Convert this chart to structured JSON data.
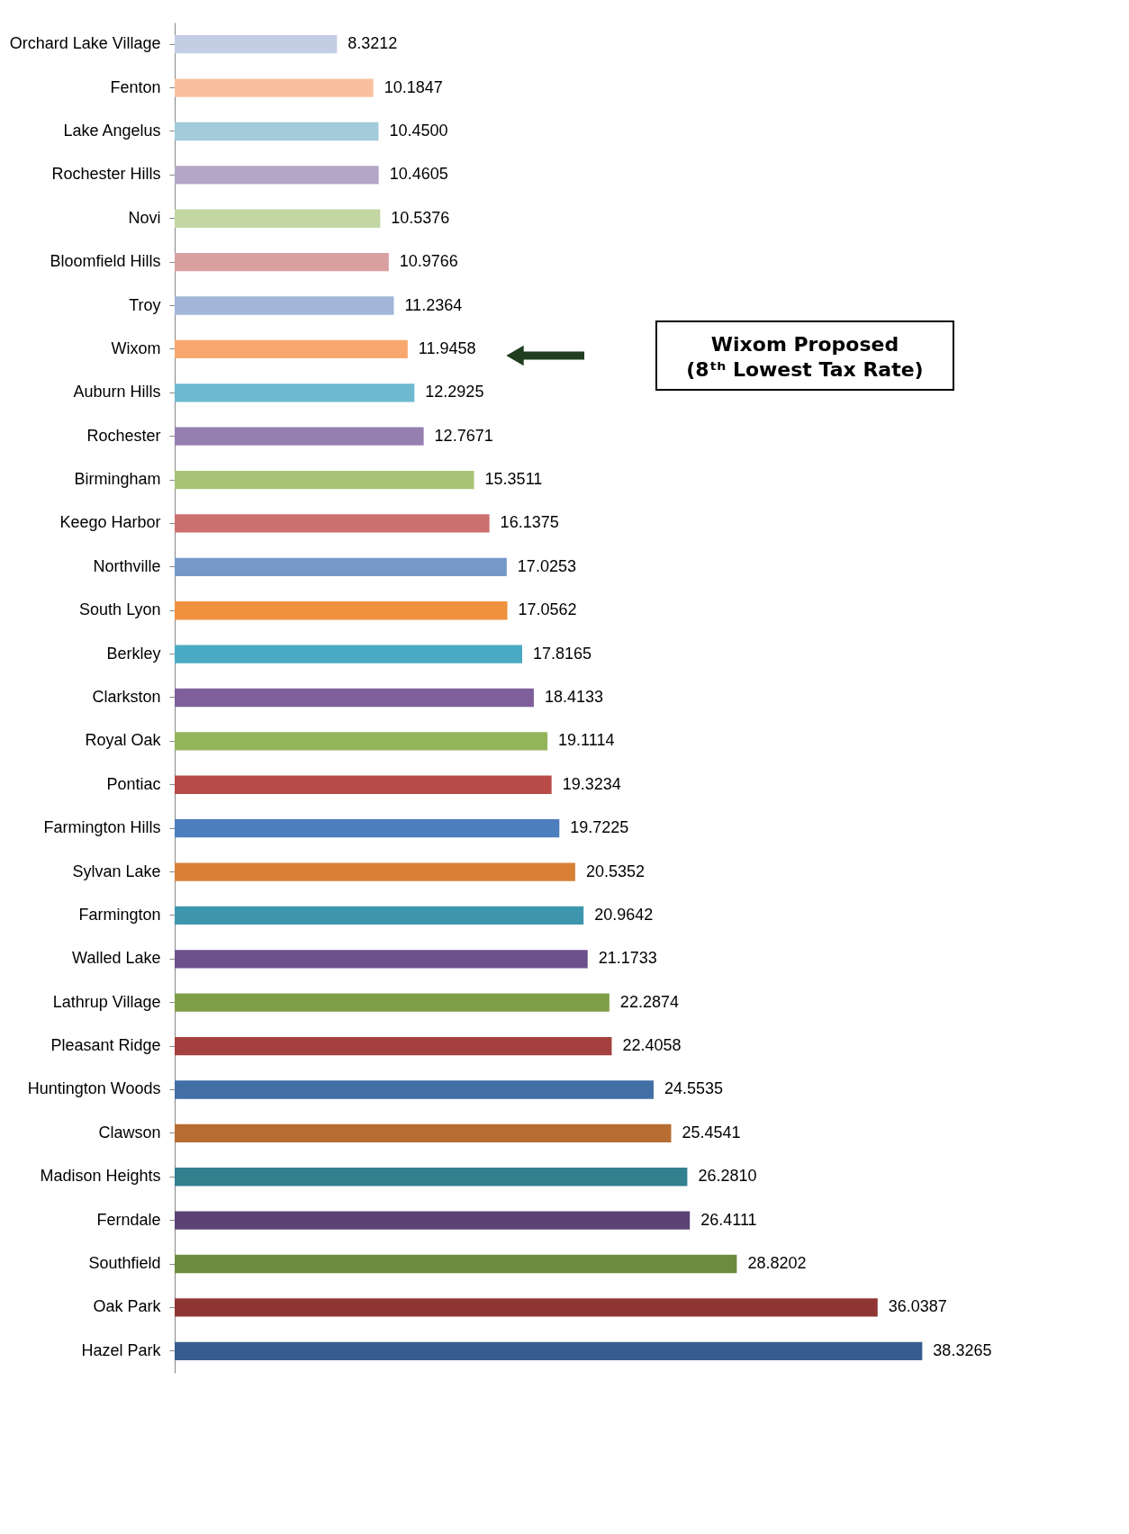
{
  "chart_data": {
    "type": "bar",
    "orientation": "horizontal",
    "grid": false,
    "categories": [
      "Orchard Lake Village",
      "Fenton",
      "Lake Angelus",
      "Rochester Hills",
      "Novi",
      "Bloomfield Hills",
      "Troy",
      "Wixom",
      "Auburn Hills",
      "Rochester",
      "Birmingham",
      "Keego Harbor",
      "Northville",
      "South Lyon",
      "Berkley",
      "Clarkston",
      "Royal Oak",
      "Pontiac",
      "Farmington Hills",
      "Sylvan Lake",
      "Farmington",
      "Walled Lake",
      "Lathrup Village",
      "Pleasant Ridge",
      "Huntington Woods",
      "Clawson",
      "Madison Heights",
      "Ferndale",
      "Southfield",
      "Oak Park",
      "Hazel Park"
    ],
    "values": [
      8.3212,
      10.1847,
      10.45,
      10.4605,
      10.5376,
      10.9766,
      11.2364,
      11.9458,
      12.2925,
      12.7671,
      15.3511,
      16.1375,
      17.0253,
      17.0562,
      17.8165,
      18.4133,
      19.1114,
      19.3234,
      19.7225,
      20.5352,
      20.9642,
      21.1733,
      22.2874,
      22.4058,
      24.5535,
      25.4541,
      26.281,
      26.4111,
      28.8202,
      36.0387,
      38.3265
    ],
    "value_labels": [
      "8.3212",
      "10.1847",
      "10.4500",
      "10.4605",
      "10.5376",
      "10.9766",
      "11.2364",
      "11.9458",
      "12.2925",
      "12.7671",
      "15.3511",
      "16.1375",
      "17.0253",
      "17.0562",
      "17.8165",
      "18.4133",
      "19.1114",
      "19.3234",
      "19.7225",
      "20.5352",
      "20.9642",
      "21.1733",
      "22.2874",
      "22.4058",
      "24.5535",
      "25.4541",
      "26.2810",
      "26.4111",
      "28.8202",
      "36.0387",
      "38.3265"
    ],
    "colors": [
      "#c3cde4",
      "#f9c0a0",
      "#a3cbd9",
      "#b2a7c6",
      "#c2d6a3",
      "#d9a0a0",
      "#a3b6d9",
      "#f8a86e",
      "#6cb9d0",
      "#957fb0",
      "#a9c476",
      "#cb6f6f",
      "#7598c9",
      "#f0913f",
      "#4aaac3",
      "#7e5f9c",
      "#93b55a",
      "#b84a47",
      "#4d7ebd",
      "#d78036",
      "#3e96ae",
      "#6b5189",
      "#7f9e47",
      "#a4403d",
      "#416fa6",
      "#b76c31",
      "#33808f",
      "#5b4475",
      "#6e8a3e",
      "#8f3634",
      "#375d8e"
    ],
    "annotations": [
      "Wixom Proposed\n(8ᵗʰ Lowest Tax Rate)"
    ]
  }
}
